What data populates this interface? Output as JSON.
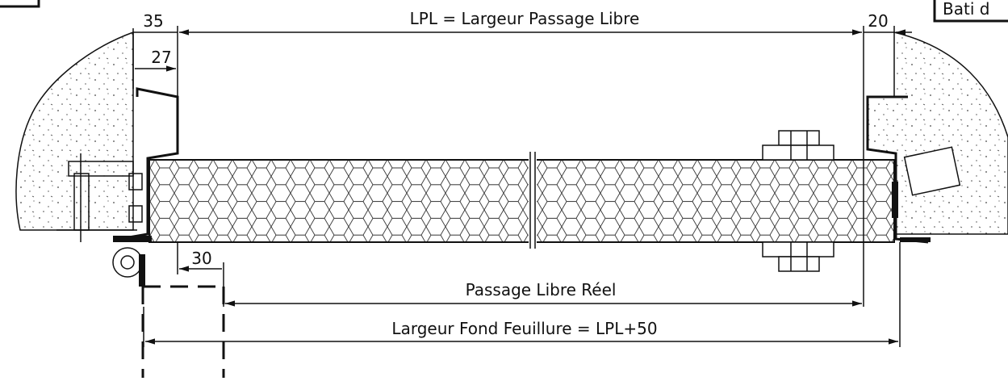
{
  "dimensions": {
    "lpl": "LPL = Largeur Passage Libre",
    "left_offset": "35",
    "right_offset": "20",
    "frame_depth": "27",
    "leaf_offset": "30",
    "real_passage": "Passage Libre Réel",
    "rebate_width": "Largeur Fond Feuillure = LPL+50"
  },
  "corner_box": "Bati d"
}
